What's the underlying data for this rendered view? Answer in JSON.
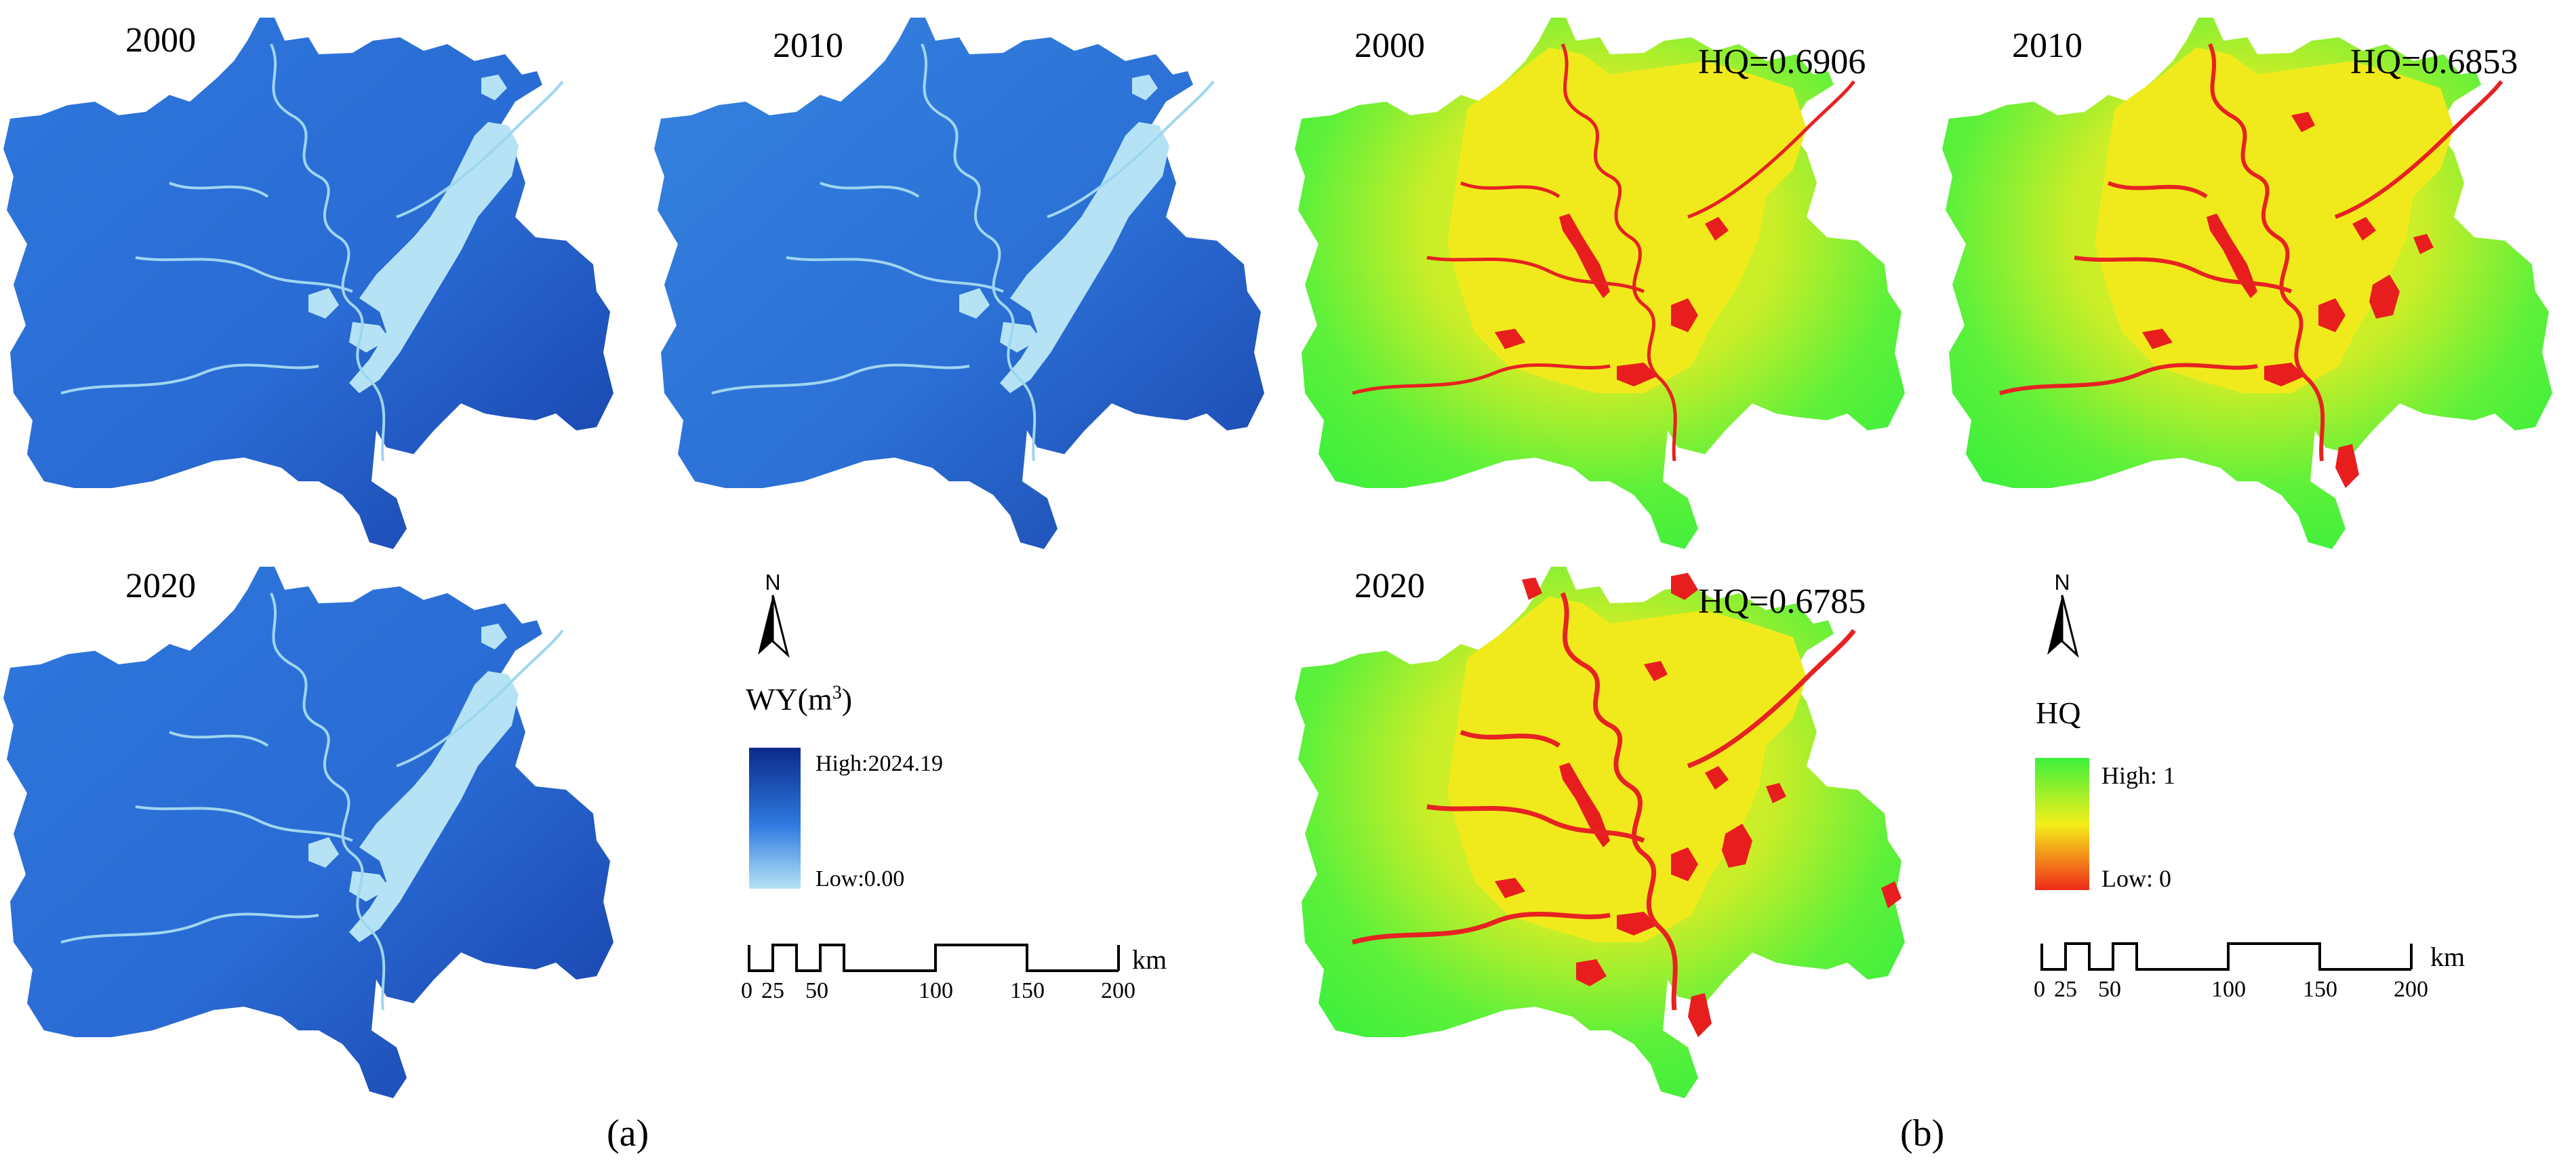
{
  "panel_a": {
    "label": "(a)",
    "maps": [
      {
        "year": "2000"
      },
      {
        "year": "2010"
      },
      {
        "year": "2020"
      }
    ],
    "legend": {
      "title": "WY(m",
      "title_sup": "3",
      "title_end": ")",
      "high": "High:2024.19",
      "low": "Low:0.00",
      "colors": {
        "high": "#0b2a8a",
        "mid": "#2f7ae0",
        "low": "#b5e3f5"
      }
    },
    "north_label": "N",
    "scale": {
      "ticks": [
        "0",
        "25",
        "50",
        "100",
        "150",
        "200"
      ],
      "unit": "km"
    }
  },
  "panel_b": {
    "label": "(b)",
    "maps": [
      {
        "year": "2000",
        "hq": "HQ=0.6906"
      },
      {
        "year": "2010",
        "hq": "HQ=0.6853"
      },
      {
        "year": "2020",
        "hq": "HQ=0.6785"
      }
    ],
    "legend": {
      "title": "HQ",
      "high": "High: 1",
      "low": "Low: 0",
      "colors": {
        "high": "#3cf03c",
        "mid": "#f4ef1a",
        "low": "#f02a1a"
      }
    },
    "north_label": "N",
    "scale": {
      "ticks": [
        "0",
        "25",
        "50",
        "100",
        "150",
        "200"
      ],
      "unit": "km"
    }
  }
}
